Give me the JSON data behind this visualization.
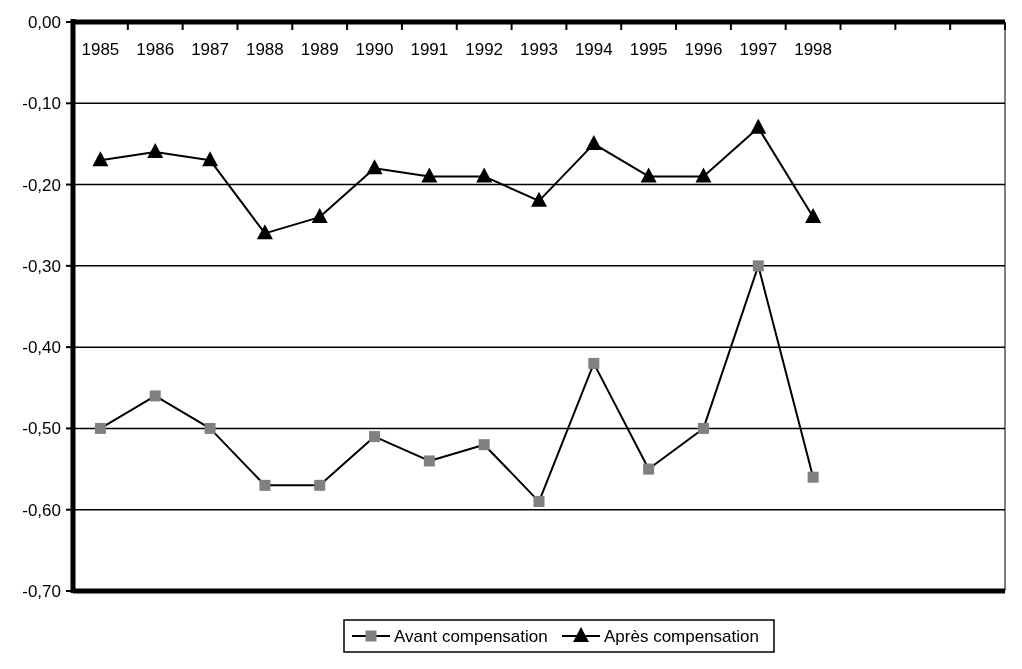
{
  "chart_data": {
    "type": "line",
    "categories": [
      "1985",
      "1986",
      "1987",
      "1988",
      "1989",
      "1990",
      "1991",
      "1992",
      "1993",
      "1994",
      "1995",
      "1996",
      "1997",
      "1998",
      null,
      null,
      null
    ],
    "series": [
      {
        "name": "Avant compensation",
        "color": "#808080",
        "marker": "square",
        "values": [
          -0.5,
          -0.46,
          -0.5,
          -0.57,
          -0.57,
          -0.51,
          -0.54,
          -0.52,
          -0.59,
          -0.42,
          -0.55,
          -0.5,
          -0.3,
          -0.56,
          null,
          null,
          null
        ]
      },
      {
        "name": "Après compensation",
        "color": "#000000",
        "marker": "triangle",
        "values": [
          -0.17,
          -0.16,
          -0.17,
          -0.26,
          -0.24,
          -0.18,
          -0.19,
          -0.19,
          -0.22,
          -0.15,
          -0.19,
          -0.19,
          -0.13,
          -0.24,
          null,
          null,
          null
        ]
      }
    ],
    "ylim": [
      -0.7,
      0
    ],
    "yticks": [
      {
        "value": 0,
        "label": "0,00"
      },
      {
        "value": -0.1,
        "label": "-0,10"
      },
      {
        "value": -0.2,
        "label": "-0,20"
      },
      {
        "value": -0.3,
        "label": "-0,30"
      },
      {
        "value": -0.4,
        "label": "-0,40"
      },
      {
        "value": -0.5,
        "label": "-0,50"
      },
      {
        "value": -0.6,
        "label": "-0,60"
      },
      {
        "value": -0.7,
        "label": "-0,70"
      }
    ],
    "grid": "y",
    "legend": "bottom",
    "line_style": "solid"
  }
}
